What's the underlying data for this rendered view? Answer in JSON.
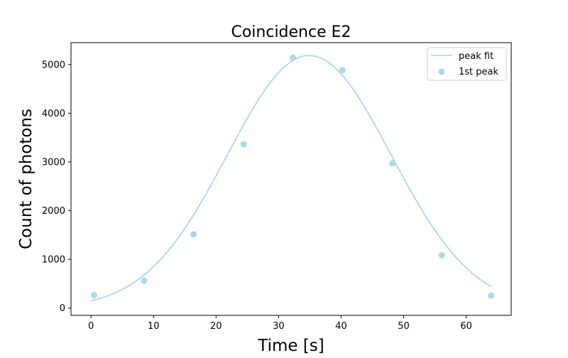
{
  "chart_data": {
    "type": "scatter",
    "title": "Coincidence E2",
    "xlabel": "Time [s]",
    "ylabel": "Count of photons",
    "xlim": [
      -3.2,
      67.2
    ],
    "ylim": [
      -150,
      5450
    ],
    "xticks": [
      0,
      10,
      20,
      30,
      40,
      50,
      60
    ],
    "yticks": [
      0,
      1000,
      2000,
      3000,
      4000,
      5000
    ],
    "grid": false,
    "legend_position": "top-right",
    "series": [
      {
        "name": "peak fit",
        "kind": "line",
        "color": "#add8e6",
        "model": "gaussian",
        "params": {
          "amplitude": 5185,
          "center": 34.9,
          "sigma": 13.1,
          "x_start": 0,
          "x_end": 64
        }
      },
      {
        "name": "1st peak",
        "kind": "scatter",
        "color": "#add8e6",
        "x": [
          0.5,
          8.5,
          16.4,
          24.4,
          32.3,
          40.2,
          48.2,
          56.1,
          64.0
        ],
        "y": [
          265,
          560,
          1515,
          3365,
          5140,
          4885,
          2970,
          1085,
          255
        ]
      }
    ]
  }
}
